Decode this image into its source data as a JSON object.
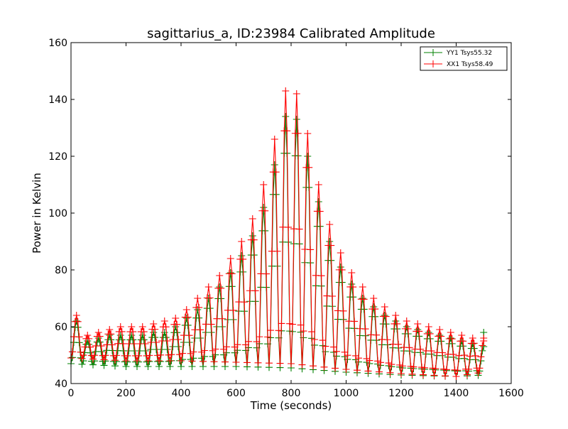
{
  "chart_data": {
    "type": "line",
    "title": "sagittarius_a, ID:23984 Calibrated Amplitude",
    "xlabel": "Time (seconds)",
    "ylabel": "Power in Kelvin",
    "xlim": [
      0,
      1600
    ],
    "ylim": [
      40,
      160
    ],
    "x_ticks": [
      0,
      200,
      400,
      600,
      800,
      1000,
      1200,
      1400,
      1600
    ],
    "y_ticks": [
      40,
      60,
      80,
      100,
      120,
      140,
      160
    ],
    "legend_position": "top-right",
    "grid": false,
    "marker": "+",
    "sampling_interval_s": 5,
    "sweep_period_s": 40,
    "series": [
      {
        "name": "YY1 Tsys55.32",
        "color": "#008000",
        "sweep_peaks": [
          [
            0,
            62
          ],
          [
            40,
            55
          ],
          [
            80,
            56
          ],
          [
            120,
            57
          ],
          [
            160,
            57
          ],
          [
            200,
            57
          ],
          [
            240,
            57
          ],
          [
            280,
            58
          ],
          [
            320,
            58
          ],
          [
            360,
            60
          ],
          [
            400,
            63
          ],
          [
            440,
            66
          ],
          [
            480,
            70
          ],
          [
            520,
            74
          ],
          [
            560,
            79
          ],
          [
            600,
            85
          ],
          [
            640,
            92
          ],
          [
            680,
            102
          ],
          [
            720,
            117
          ],
          [
            760,
            134
          ],
          [
            800,
            133
          ],
          [
            840,
            120
          ],
          [
            880,
            104
          ],
          [
            920,
            90
          ],
          [
            960,
            81
          ],
          [
            1000,
            75
          ],
          [
            1040,
            70
          ],
          [
            1080,
            67
          ],
          [
            1120,
            64
          ],
          [
            1160,
            62
          ],
          [
            1200,
            60
          ],
          [
            1240,
            59
          ],
          [
            1280,
            58
          ],
          [
            1320,
            57
          ],
          [
            1360,
            56
          ],
          [
            1400,
            55
          ],
          [
            1440,
            54
          ],
          [
            1480,
            53
          ]
        ],
        "baseline": [
          [
            0,
            47
          ],
          [
            200,
            46
          ],
          [
            400,
            46
          ],
          [
            600,
            46
          ],
          [
            800,
            45.5
          ],
          [
            1000,
            44
          ],
          [
            1200,
            43
          ],
          [
            1400,
            42.5
          ],
          [
            1500,
            43
          ]
        ],
        "end_point": [
          1500,
          58
        ]
      },
      {
        "name": "XX1 Tsys58.49",
        "color": "#ff0000",
        "sweep_peaks": [
          [
            0,
            64
          ],
          [
            40,
            57
          ],
          [
            80,
            58
          ],
          [
            120,
            59
          ],
          [
            160,
            60
          ],
          [
            200,
            60
          ],
          [
            240,
            60
          ],
          [
            280,
            61
          ],
          [
            320,
            62
          ],
          [
            360,
            63
          ],
          [
            400,
            66
          ],
          [
            440,
            70
          ],
          [
            480,
            74
          ],
          [
            520,
            78
          ],
          [
            560,
            84
          ],
          [
            600,
            90
          ],
          [
            640,
            98
          ],
          [
            680,
            110
          ],
          [
            720,
            126
          ],
          [
            760,
            143
          ],
          [
            800,
            142
          ],
          [
            840,
            128
          ],
          [
            880,
            110
          ],
          [
            920,
            96
          ],
          [
            960,
            86
          ],
          [
            1000,
            79
          ],
          [
            1040,
            74
          ],
          [
            1080,
            70
          ],
          [
            1120,
            67
          ],
          [
            1160,
            64
          ],
          [
            1200,
            62
          ],
          [
            1240,
            61
          ],
          [
            1280,
            60
          ],
          [
            1320,
            59
          ],
          [
            1360,
            58
          ],
          [
            1400,
            57
          ],
          [
            1440,
            56
          ],
          [
            1480,
            55
          ]
        ],
        "baseline": [
          [
            0,
            49
          ],
          [
            200,
            48
          ],
          [
            400,
            48
          ],
          [
            600,
            47.5
          ],
          [
            800,
            47
          ],
          [
            1000,
            45
          ],
          [
            1200,
            43.5
          ],
          [
            1400,
            42.5
          ],
          [
            1500,
            44
          ]
        ],
        "end_point": [
          1500,
          56
        ]
      }
    ]
  }
}
